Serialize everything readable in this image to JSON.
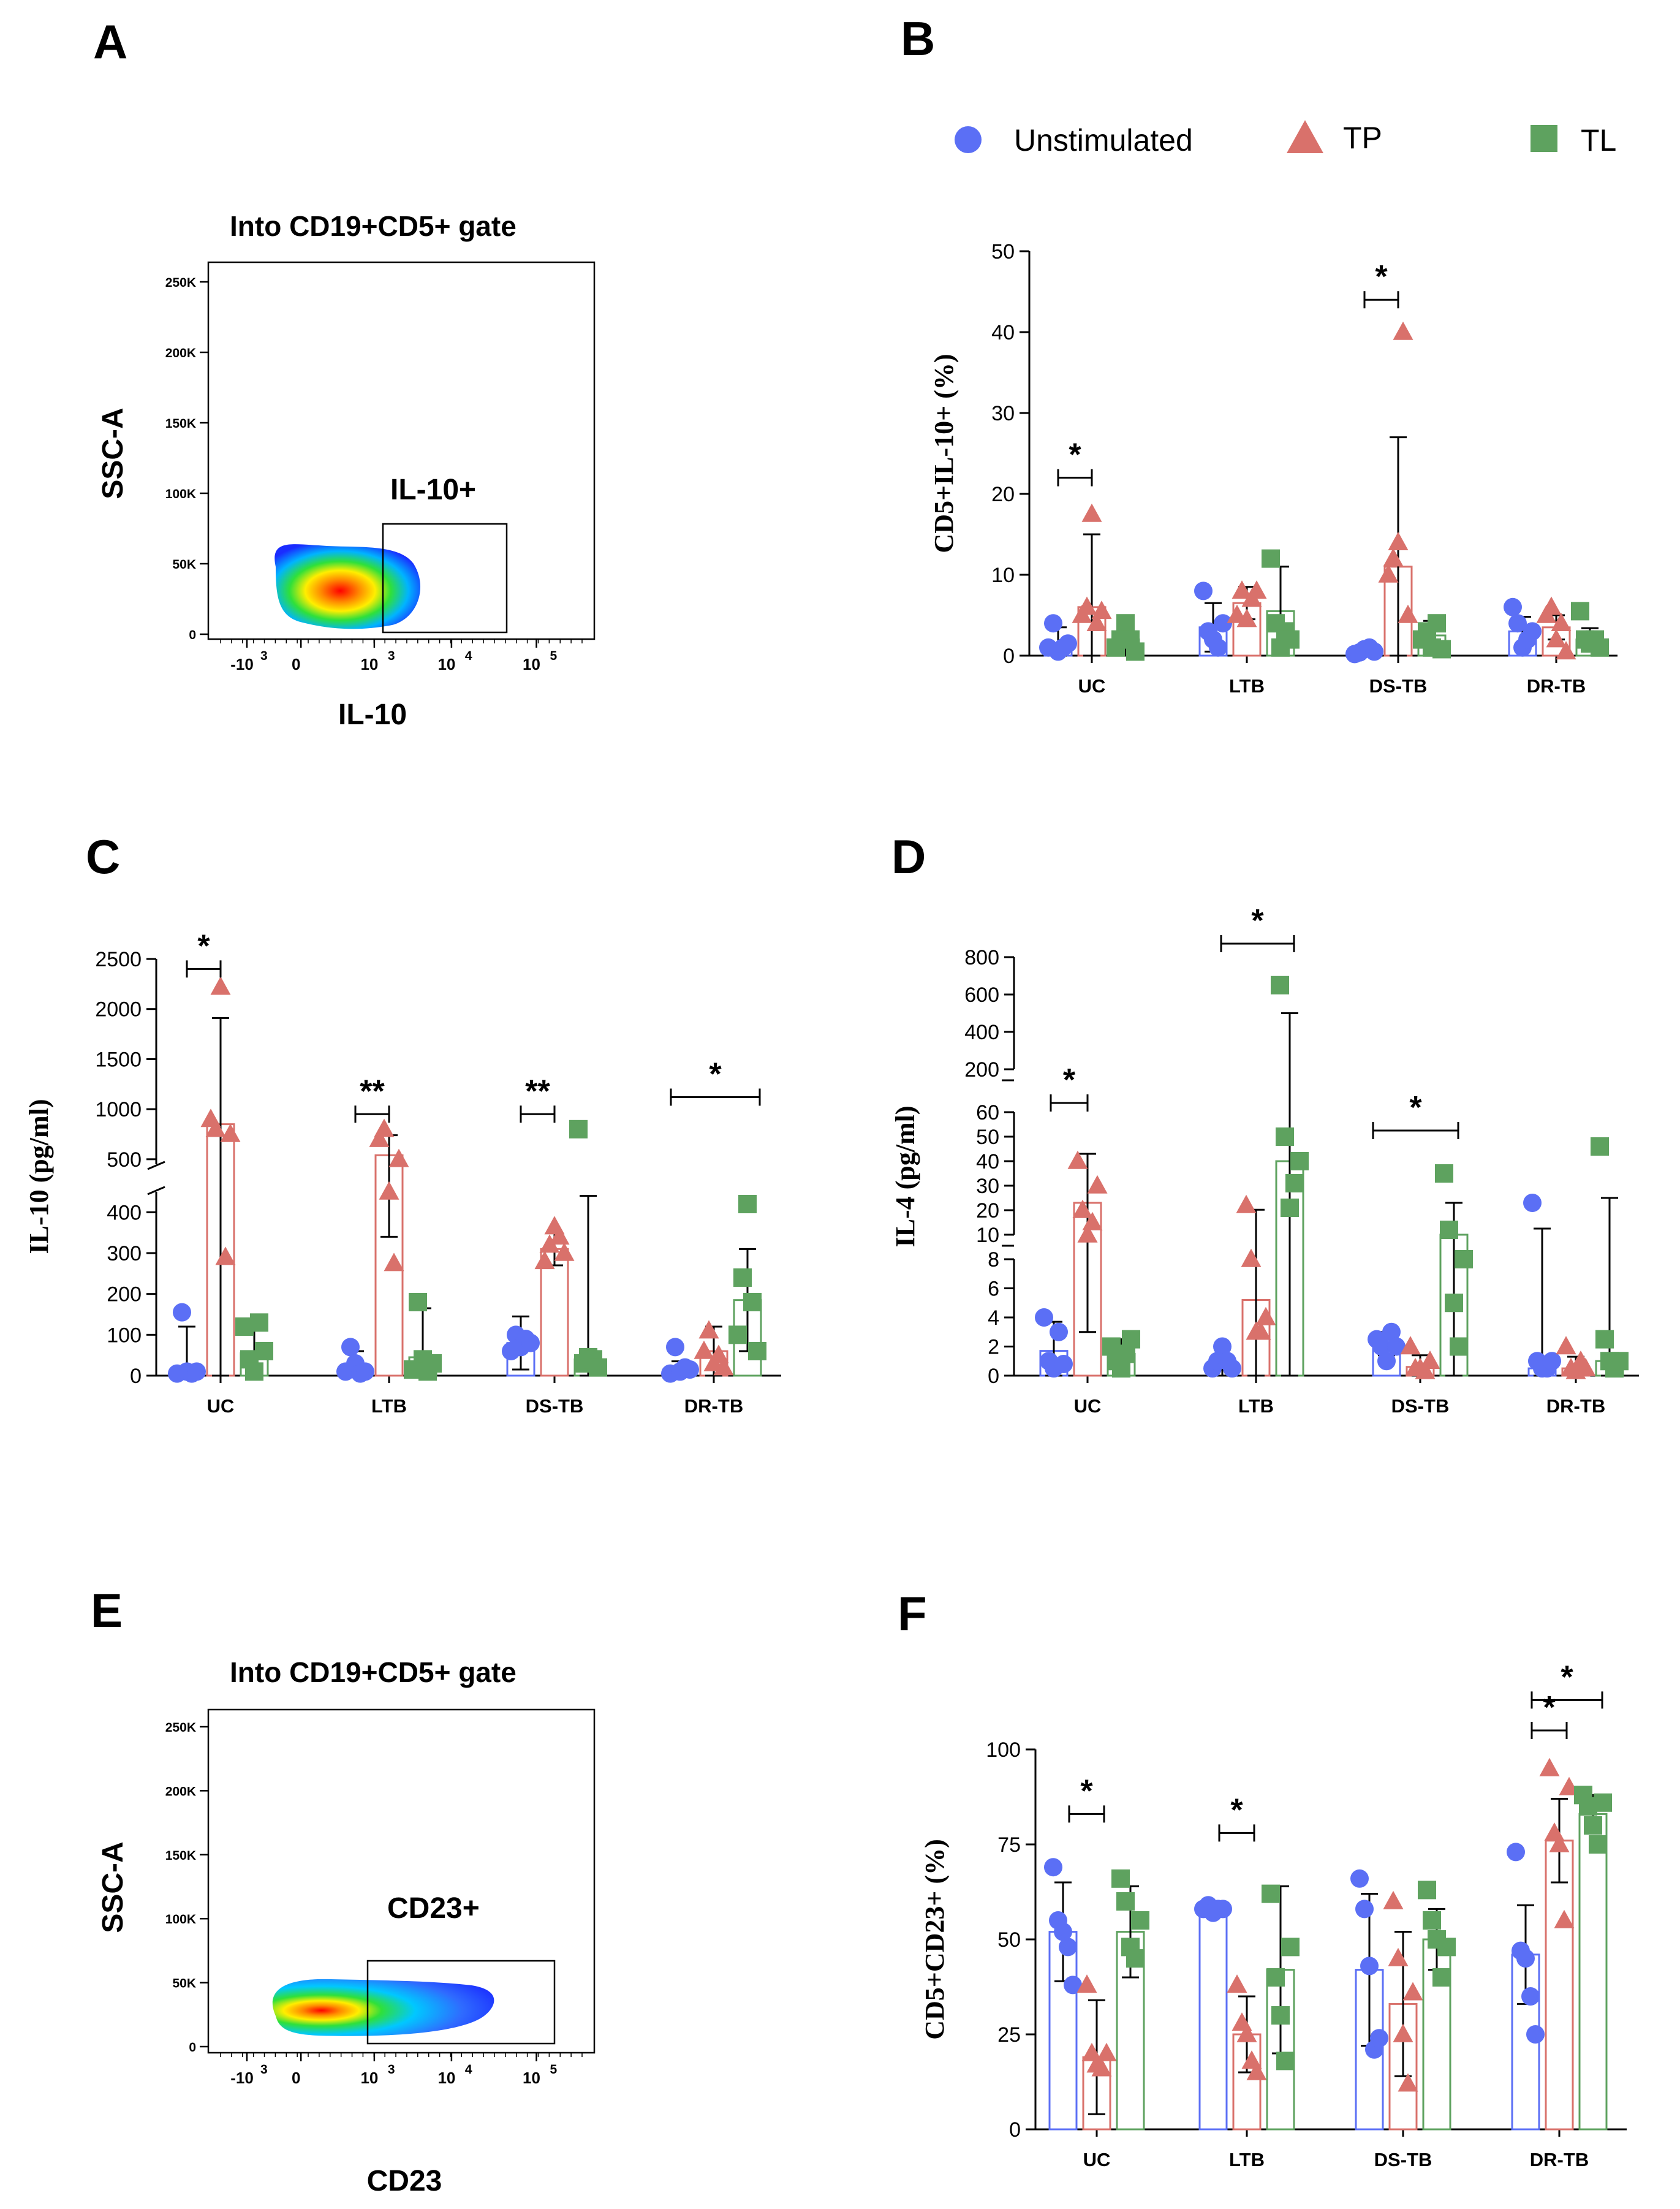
{
  "panel_labels": {
    "a": "A",
    "b": "B",
    "c": "C",
    "d": "D",
    "e": "E",
    "f": "F"
  },
  "colors": {
    "unstim": "#5b6ff5",
    "tp": "#d9716b",
    "tl": "#5ea25f",
    "tp_dark": "#b4453f",
    "tl_dark": "#2f7a32"
  },
  "legend": {
    "unstim": "Unstimulated",
    "tp": "TP",
    "tl": "TL"
  },
  "flow_a": {
    "title": "Into CD19+CD5+ gate",
    "ylabel": "SSC-A",
    "xlabel": "IL-10",
    "gate_label": "IL-10+",
    "yticks": [
      "250K",
      "200K",
      "150K",
      "100K",
      "50K",
      "0"
    ],
    "xticks": [
      "-10",
      "0",
      "10",
      "10",
      "10"
    ],
    "xexp": [
      "3",
      "3",
      "4",
      "5"
    ]
  },
  "flow_e": {
    "title": "Into CD19+CD5+ gate",
    "ylabel": "SSC-A",
    "xlabel": "CD23",
    "gate_label": "CD23+",
    "yticks": [
      "250K",
      "200K",
      "150K",
      "100K",
      "50K",
      "0"
    ],
    "xticks": [
      "-10",
      "0",
      "10",
      "10",
      "10"
    ],
    "xexp": [
      "3",
      "3",
      "4",
      "5"
    ]
  },
  "chart_data": [
    {
      "id": "B",
      "type": "bar",
      "ylabel": "CD5+IL-10+ (%)",
      "ylim": [
        0,
        50
      ],
      "yticks": [
        "0",
        "10",
        "20",
        "30",
        "40",
        "50"
      ],
      "categories": [
        "UC",
        "LTB",
        "DS-TB",
        "DR-TB"
      ],
      "series": [
        {
          "name": "Unstimulated",
          "values": [
            1.5,
            3.5,
            0.5,
            3.0
          ],
          "err": [
            2.0,
            3.0,
            0.6,
            1.8
          ],
          "points": [
            [
              1,
              4,
              0.5,
              1,
              1.5
            ],
            [
              8,
              3,
              2,
              1,
              4
            ],
            [
              0.2,
              0.4,
              0.8,
              1,
              0.5
            ],
            [
              6,
              4,
              1,
              2,
              3
            ]
          ]
        },
        {
          "name": "TP",
          "values": [
            6,
            6.5,
            11,
            3.5
          ],
          "err": [
            9,
            2,
            16,
            1.5
          ],
          "points": [
            [
              5,
              6,
              17.5,
              4,
              5.5
            ],
            [
              5,
              8,
              4.5,
              7,
              8
            ],
            [
              10,
              12,
              14,
              40,
              5
            ],
            [
              5,
              6,
              2,
              4,
              0.5
            ]
          ]
        },
        {
          "name": "TL",
          "values": [
            2,
            5.5,
            2.5,
            2
          ],
          "err": [
            2,
            5.5,
            1.8,
            1.4
          ],
          "points": [
            [
              1,
              2,
              4,
              2,
              0.5
            ],
            [
              12,
              4,
              1,
              3,
              2
            ],
            [
              2,
              3,
              1,
              4,
              0.8
            ],
            [
              5.5,
              2,
              1.5,
              2,
              1
            ]
          ]
        }
      ],
      "significance": [
        {
          "label": "*",
          "cat": 0,
          "from": 0,
          "to": 1,
          "y": 22
        },
        {
          "label": "*",
          "cat": 2,
          "from": 0,
          "to": 1,
          "y": 44
        }
      ]
    },
    {
      "id": "C",
      "type": "bar",
      "ylabel": "IL-10 (pg/ml)",
      "categories": [
        "UC",
        "LTB",
        "DS-TB",
        "DR-TB"
      ],
      "axis_break": {
        "lower": [
          0,
          450
        ],
        "upper": [
          450,
          2500
        ]
      },
      "yticks_lower": [
        "0",
        "100",
        "200",
        "300",
        "400"
      ],
      "yticks_upper": [
        "500",
        "1000",
        "1500",
        "2000",
        "2500"
      ],
      "series": [
        {
          "name": "Unstimulated",
          "values": [
            10,
            20,
            80,
            15
          ],
          "err": [
            110,
            40,
            65,
            20
          ],
          "points": [
            [
              5,
              155,
              10,
              5,
              10
            ],
            [
              10,
              70,
              30,
              5,
              10
            ],
            [
              60,
              100,
              70,
              90,
              80
            ],
            [
              5,
              70,
              10,
              20,
              15
            ]
          ]
        },
        {
          "name": "TP",
          "values": [
            850,
            540,
            310,
            60
          ],
          "err": [
            1060,
            200,
            40,
            60
          ],
          "points": [
            [
              900,
              800,
              2220,
              290,
              750
            ],
            [
              700,
              800,
              450,
              275,
              500
            ],
            [
              280,
              320,
              365,
              340,
              300
            ],
            [
              60,
              110,
              30,
              50,
              20
            ]
          ]
        },
        {
          "name": "TL",
          "values": [
            55,
            45,
            40,
            185
          ],
          "err": [
            70,
            120,
            400,
            125
          ],
          "points": [
            [
              120,
              40,
              10,
              130,
              60
            ],
            [
              15,
              180,
              40,
              10,
              30
            ],
            [
              800,
              30,
              45,
              40,
              20
            ],
            [
              100,
              240,
              420,
              180,
              60
            ]
          ]
        }
      ],
      "significance": [
        {
          "label": "*",
          "cat": 0,
          "y": 2400
        },
        {
          "label": "**",
          "cat": 1,
          "y": 950
        },
        {
          "label": "**",
          "cat": 2,
          "y": 950
        },
        {
          "label": "*",
          "cat": 3,
          "y": 1120,
          "span": "wide"
        }
      ]
    },
    {
      "id": "D",
      "type": "bar",
      "ylabel": "IL-4 (pg/ml)",
      "categories": [
        "UC",
        "LTB",
        "DS-TB",
        "DR-TB"
      ],
      "axis_breaks": [
        [
          0,
          8
        ],
        [
          10,
          60
        ],
        [
          200,
          800
        ]
      ],
      "yticks_low": [
        "0",
        "2",
        "4",
        "6",
        "8"
      ],
      "yticks_mid": [
        "10",
        "20",
        "30",
        "40",
        "50",
        "60"
      ],
      "yticks_high": [
        "200",
        "400",
        "600",
        "800"
      ],
      "series": [
        {
          "name": "Unstimulated",
          "values": [
            1.7,
            0.8,
            2.2,
            0.5
          ],
          "err": [
            2.0,
            1.0,
            0.8,
            12.0
          ],
          "points": [
            [
              4,
              1,
              0.5,
              3,
              0.8
            ],
            [
              0.5,
              1,
              2,
              1,
              0.5
            ],
            [
              2.5,
              2,
              1,
              3,
              2
            ],
            [
              23,
              1,
              0.5,
              0.5,
              1
            ]
          ]
        },
        {
          "name": "TP",
          "values": [
            23,
            5.2,
            0.6,
            0.5
          ],
          "err": [
            20,
            15,
            0.8,
            0.8
          ],
          "points": [
            [
              40,
              20,
              10,
              15,
              30
            ],
            [
              22,
              9,
              3,
              3,
              4
            ],
            [
              2,
              0.5,
              0.5,
              0.3,
              1
            ],
            [
              2,
              0.5,
              0.3,
              1,
              0.5
            ]
          ]
        },
        {
          "name": "TL",
          "values": [
            1.5,
            40,
            10,
            1
          ],
          "err": [
            1.0,
            460,
            13,
            24
          ],
          "points": [
            [
              2,
              1,
              0.5,
              1.5,
              2.5
            ],
            [
              650,
              50,
              21,
              31,
              40
            ],
            [
              35,
              12,
              5,
              2,
              8
            ],
            [
              46,
              2.5,
              1,
              0.5,
              1
            ]
          ]
        }
      ],
      "significance": [
        {
          "label": "*",
          "cat": 0,
          "y": "60"
        },
        {
          "label": "*",
          "cat": 1,
          "y": "800"
        },
        {
          "label": "*",
          "cat": 2,
          "y": "60"
        }
      ]
    },
    {
      "id": "F",
      "type": "bar",
      "ylabel": "CD5+CD23+ (%)",
      "ylim": [
        0,
        100
      ],
      "yticks": [
        "0",
        "25",
        "50",
        "75",
        "100"
      ],
      "categories": [
        "UC",
        "LTB",
        "DS-TB",
        "DR-TB"
      ],
      "series": [
        {
          "name": "Unstimulated",
          "values": [
            52,
            58,
            42,
            46
          ],
          "err": [
            13,
            1,
            20,
            13
          ],
          "points": [
            [
              69,
              55,
              52,
              48,
              38
            ],
            [
              58,
              59,
              57,
              58,
              58
            ],
            [
              66,
              58,
              43,
              21,
              24
            ],
            [
              73,
              47,
              45,
              35,
              25
            ]
          ]
        },
        {
          "name": "TP",
          "values": [
            19,
            25,
            33,
            76
          ],
          "err": [
            15,
            10,
            19,
            11
          ],
          "points": [
            [
              38,
              20,
              17,
              16,
              20
            ],
            [
              38,
              28,
              25,
              18,
              15
            ],
            [
              60,
              45,
              25,
              12,
              36
            ],
            [
              95,
              78,
              75,
              55,
              90
            ]
          ]
        },
        {
          "name": "TL",
          "values": [
            52,
            42,
            50,
            83
          ],
          "err": [
            12,
            22,
            8,
            5
          ],
          "points": [
            [
              66,
              60,
              48,
              45,
              55
            ],
            [
              62,
              40,
              30,
              18,
              48
            ],
            [
              63,
              55,
              50,
              40,
              48
            ],
            [
              88,
              85,
              80,
              75,
              86
            ]
          ]
        }
      ],
      "significance": [
        {
          "label": "*",
          "cat": 0,
          "y": 83
        },
        {
          "label": "*",
          "cat": 1,
          "y": 78
        },
        {
          "label": "*",
          "cat": 3,
          "y": 105
        },
        {
          "label": "*",
          "cat": 3,
          "y": 113,
          "span": "wide"
        }
      ]
    }
  ]
}
